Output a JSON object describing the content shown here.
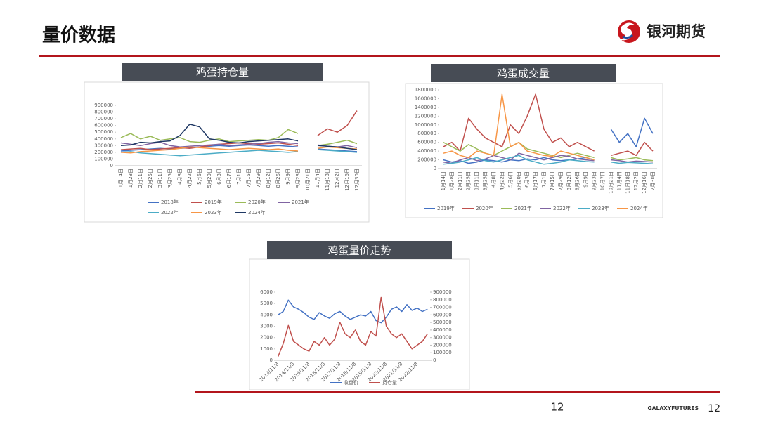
{
  "header": {
    "title": "量价数据",
    "logo": "银河期货"
  },
  "footer": {
    "page": "12",
    "brand": "GALAXYFUTURES",
    "page_number": "12"
  },
  "chart_data": [
    {
      "type": "line",
      "title": "鸡蛋持仓量",
      "categories": [
        "1月14日",
        "1月28日",
        "2月11日",
        "2月25日",
        "3月11日",
        "3月25日",
        "4月8日",
        "4月22日",
        "5月6日",
        "5月20日",
        "6月3日",
        "6月17日",
        "7月1日",
        "7月15日",
        "7月29日",
        "8月12日",
        "8月26日",
        "9月9日",
        "9月23日",
        "10月21日",
        "11月4日",
        "11月18日",
        "12月2日",
        "12月16日",
        "12月30日"
      ],
      "ylim": [
        0,
        900000
      ],
      "yticks": [
        0,
        100000,
        200000,
        300000,
        400000,
        500000,
        600000,
        700000,
        800000,
        900000
      ],
      "legend": "bottom",
      "series": [
        {
          "name": "2018年",
          "color": "#4472c4",
          "values": [
            220000,
            230000,
            240000,
            250000,
            260000,
            250000,
            260000,
            270000,
            280000,
            290000,
            300000,
            290000,
            300000,
            310000,
            300000,
            290000,
            300000,
            290000,
            280000,
            null,
            250000,
            240000,
            230000,
            220000,
            210000
          ]
        },
        {
          "name": "2019年",
          "color": "#c0504d",
          "values": [
            240000,
            250000,
            260000,
            240000,
            250000,
            260000,
            270000,
            260000,
            280000,
            300000,
            320000,
            330000,
            340000,
            330000,
            320000,
            330000,
            340000,
            320000,
            300000,
            null,
            450000,
            550000,
            500000,
            600000,
            820000
          ]
        },
        {
          "name": "2020年",
          "color": "#9bbb59",
          "values": [
            420000,
            480000,
            400000,
            440000,
            380000,
            400000,
            420000,
            360000,
            350000,
            380000,
            400000,
            360000,
            370000,
            380000,
            390000,
            380000,
            420000,
            540000,
            480000,
            null,
            300000,
            320000,
            350000,
            380000,
            330000
          ]
        },
        {
          "name": "2021年",
          "color": "#8064a2",
          "values": [
            340000,
            320000,
            300000,
            330000,
            350000,
            300000,
            280000,
            290000,
            300000,
            310000,
            320000,
            300000,
            310000,
            320000,
            330000,
            350000,
            360000,
            340000,
            330000,
            null,
            310000,
            290000,
            280000,
            300000,
            270000
          ]
        },
        {
          "name": "2022年",
          "color": "#4bacc6",
          "values": [
            200000,
            210000,
            190000,
            180000,
            170000,
            160000,
            150000,
            160000,
            170000,
            180000,
            190000,
            200000,
            210000,
            220000,
            230000,
            220000,
            210000,
            200000,
            210000,
            null,
            240000,
            230000,
            220000,
            210000,
            200000
          ]
        },
        {
          "name": "2023年",
          "color": "#f79646",
          "values": [
            200000,
            190000,
            210000,
            220000,
            230000,
            240000,
            260000,
            280000,
            270000,
            260000,
            250000,
            240000,
            250000,
            260000,
            250000,
            240000,
            250000,
            230000,
            220000,
            null,
            260000,
            280000,
            270000,
            260000,
            250000
          ]
        },
        {
          "name": "2024年",
          "color": "#1f3864",
          "values": [
            300000,
            310000,
            350000,
            340000,
            360000,
            370000,
            450000,
            620000,
            580000,
            400000,
            380000,
            350000,
            340000,
            360000,
            370000,
            380000,
            390000,
            400000,
            370000,
            null,
            300000,
            290000,
            280000,
            260000,
            240000
          ]
        }
      ]
    },
    {
      "type": "line",
      "title": "鸡蛋成交量",
      "categories": [
        "1月14日",
        "1月28日",
        "2月11日",
        "2月25日",
        "3月11日",
        "3月25日",
        "4月8日",
        "4月22日",
        "5月6日",
        "5月20日",
        "6月3日",
        "6月17日",
        "7月1日",
        "7月15日",
        "7月29日",
        "8月12日",
        "8月26日",
        "9月9日",
        "9月23日",
        "10月7日",
        "10月21日",
        "11月4日",
        "11月18日",
        "12月2日",
        "12月16日",
        "12月30日"
      ],
      "ylim": [
        0,
        1800000
      ],
      "yticks": [
        0,
        200000,
        400000,
        600000,
        800000,
        1000000,
        1200000,
        1400000,
        1600000,
        1800000
      ],
      "legend": "bottom",
      "series": [
        {
          "name": "2019年",
          "color": "#4472c4",
          "values": [
            200000,
            150000,
            180000,
            120000,
            150000,
            200000,
            180000,
            150000,
            200000,
            180000,
            220000,
            200000,
            250000,
            200000,
            180000,
            200000,
            220000,
            250000,
            200000,
            null,
            900000,
            600000,
            800000,
            500000,
            1150000,
            800000
          ]
        },
        {
          "name": "2020年",
          "color": "#c0504d",
          "values": [
            500000,
            600000,
            400000,
            1150000,
            900000,
            700000,
            600000,
            500000,
            1000000,
            800000,
            1200000,
            1700000,
            900000,
            600000,
            700000,
            500000,
            600000,
            500000,
            400000,
            null,
            300000,
            350000,
            400000,
            300000,
            600000,
            400000
          ]
        },
        {
          "name": "2021年",
          "color": "#9bbb59",
          "values": [
            600000,
            500000,
            400000,
            550000,
            450000,
            350000,
            300000,
            400000,
            500000,
            600000,
            450000,
            400000,
            350000,
            300000,
            250000,
            300000,
            350000,
            300000,
            250000,
            null,
            250000,
            200000,
            220000,
            250000,
            200000,
            180000
          ]
        },
        {
          "name": "2022年",
          "color": "#8064a2",
          "values": [
            150000,
            120000,
            200000,
            250000,
            180000,
            220000,
            300000,
            250000,
            200000,
            350000,
            300000,
            250000,
            200000,
            250000,
            300000,
            280000,
            220000,
            200000,
            180000,
            null,
            200000,
            180000,
            150000,
            170000,
            160000,
            150000
          ]
        },
        {
          "name": "2023年",
          "color": "#4bacc6",
          "values": [
            100000,
            120000,
            150000,
            200000,
            250000,
            180000,
            150000,
            200000,
            250000,
            300000,
            200000,
            150000,
            100000,
            120000,
            150000,
            200000,
            180000,
            160000,
            150000,
            null,
            150000,
            120000,
            140000,
            130000,
            120000,
            110000
          ]
        },
        {
          "name": "2024年",
          "color": "#f79646",
          "values": [
            350000,
            400000,
            300000,
            250000,
            400000,
            350000,
            300000,
            1700000,
            500000,
            600000,
            400000,
            350000,
            300000,
            280000,
            400000,
            350000,
            300000,
            250000,
            200000,
            null,
            null,
            null,
            null,
            null,
            null,
            null
          ]
        }
      ]
    },
    {
      "type": "line",
      "title": "鸡蛋量价走势",
      "categories": [
        "2013/11/8",
        null,
        null,
        "2014/11/8",
        null,
        null,
        "2015/11/8",
        null,
        null,
        "2016/11/8",
        null,
        null,
        "2017/11/8",
        null,
        null,
        "2018/11/8",
        null,
        null,
        "2019/11/8",
        null,
        null,
        "2020/11/8",
        null,
        null,
        "2021/11/8",
        null,
        null,
        "2022/11/8",
        null,
        null
      ],
      "ylim": [
        0,
        6000
      ],
      "yticks": [
        0,
        1000,
        2000,
        3000,
        4000,
        5000,
        6000
      ],
      "y2lim": [
        0,
        900000
      ],
      "y2ticks": [
        0,
        100000,
        200000,
        300000,
        400000,
        500000,
        600000,
        700000,
        800000,
        900000
      ],
      "legend": "bottom",
      "series": [
        {
          "name": "收盘价",
          "color": "#4472c4",
          "values": [
            4000,
            4300,
            5300,
            4700,
            4500,
            4200,
            3800,
            3600,
            4200,
            3900,
            3700,
            4100,
            4300,
            3900,
            3600,
            3800,
            4000,
            3900,
            4300,
            3500,
            3300,
            3800,
            4500,
            4700,
            4300,
            4900,
            4400,
            4600,
            4300,
            4500
          ]
        },
        {
          "name": "持仓量",
          "color": "#c0504d",
          "axis": "y2",
          "values": [
            50000,
            220000,
            460000,
            250000,
            200000,
            150000,
            120000,
            250000,
            200000,
            300000,
            200000,
            280000,
            500000,
            350000,
            300000,
            400000,
            250000,
            200000,
            380000,
            320000,
            830000,
            450000,
            350000,
            300000,
            350000,
            250000,
            150000,
            200000,
            250000,
            350000
          ]
        }
      ]
    }
  ]
}
